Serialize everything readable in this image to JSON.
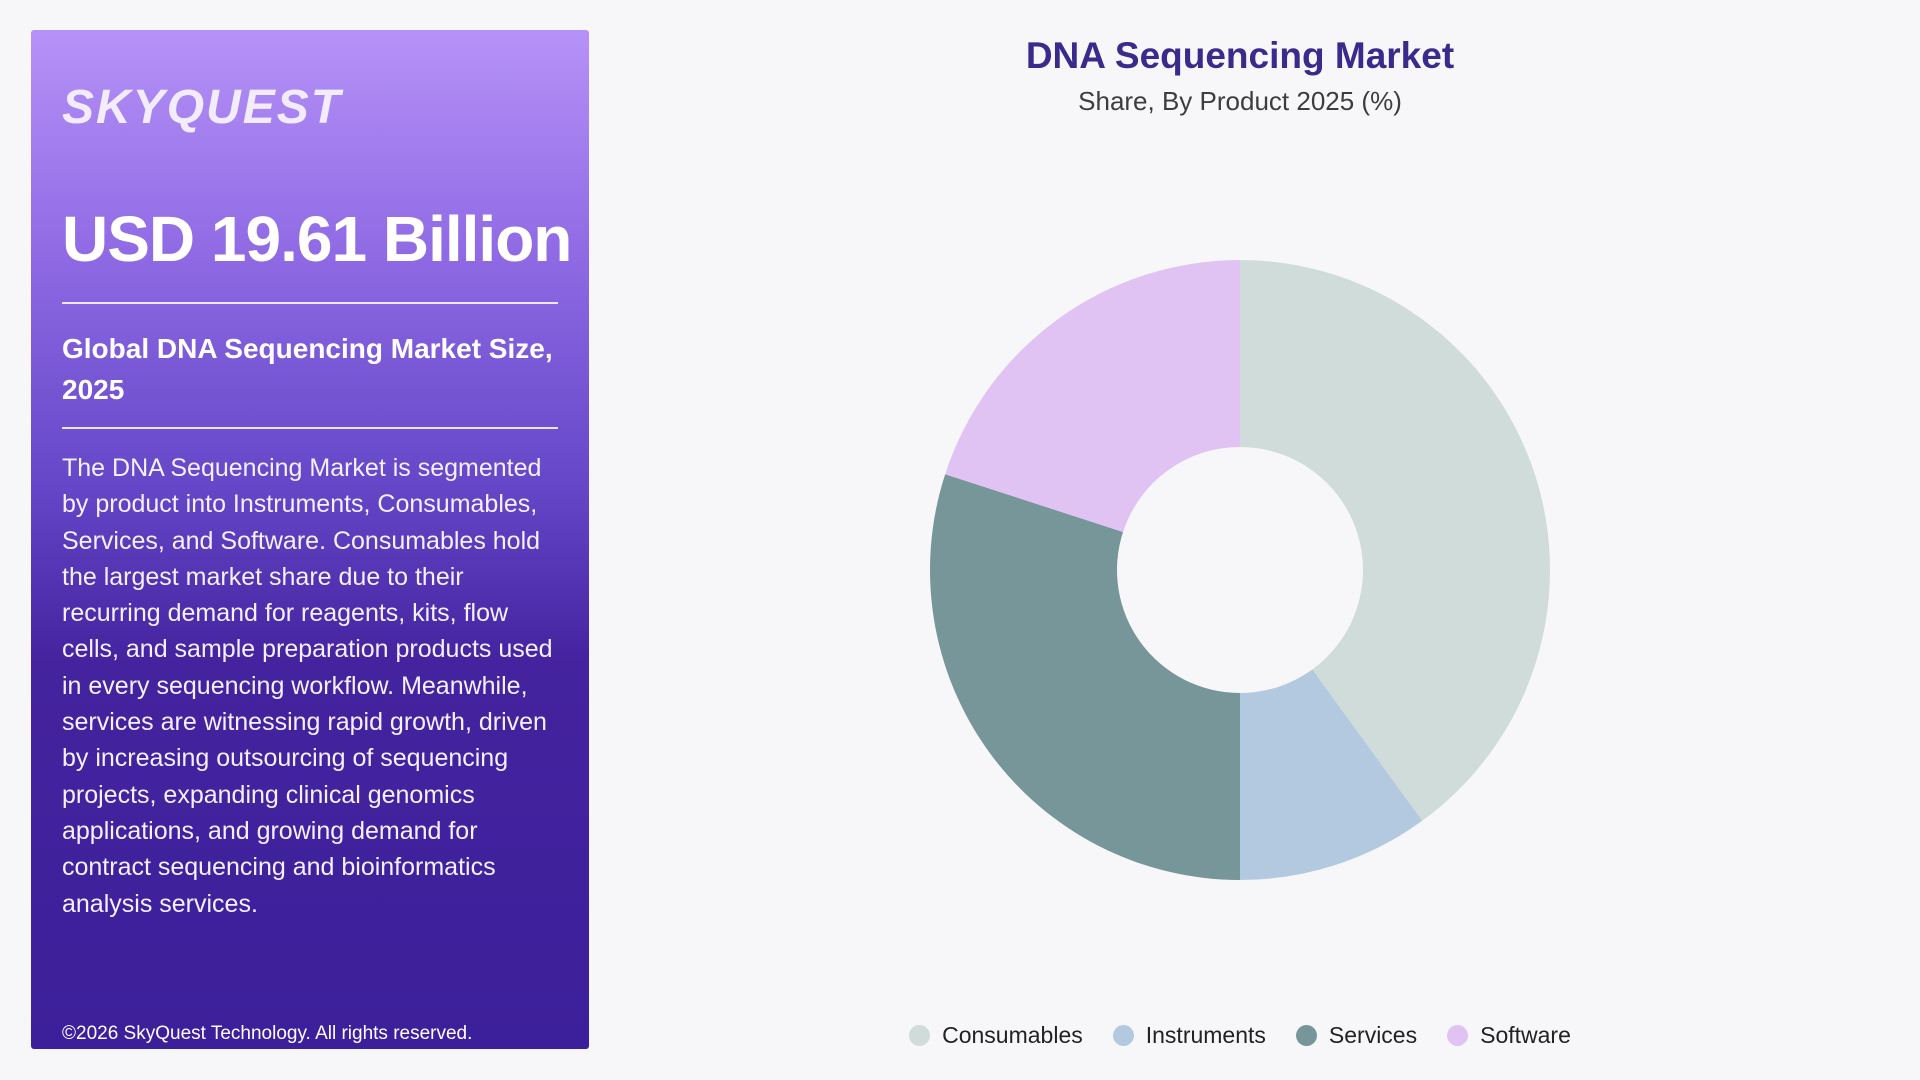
{
  "brand": {
    "logo_text": "SKYQUEST"
  },
  "panel": {
    "market_value": "USD 19.61 Billion",
    "subtitle": "Global DNA Sequencing Market Size, 2025",
    "description": "The DNA Sequencing Market is segmented by product into Instruments, Consumables, Services, and Software. Consumables hold the largest market share due to their recurring demand for reagents, kits, flow cells, and sample preparation products used in every sequencing workflow. Meanwhile, services are witnessing rapid growth, driven by increasing outsourcing of sequencing projects, expanding clinical genomics applications, and growing demand for contract sequencing and bioinformatics analysis services.",
    "copyright": "©2026 SkyQuest Technology. All rights reserved."
  },
  "chart_data": {
    "type": "pie",
    "title": "DNA Sequencing Market",
    "subtitle": "Share, By Product 2025 (%)",
    "donut": true,
    "legend_position": "bottom",
    "start_angle_deg": 0,
    "direction": "clockwise",
    "categories": [
      "Consumables",
      "Instruments",
      "Services",
      "Software"
    ],
    "values": [
      40,
      10,
      30,
      20
    ],
    "colors": [
      "#d0dcd9",
      "#b2c9e0",
      "#76969a",
      "#e0c3f3"
    ]
  }
}
